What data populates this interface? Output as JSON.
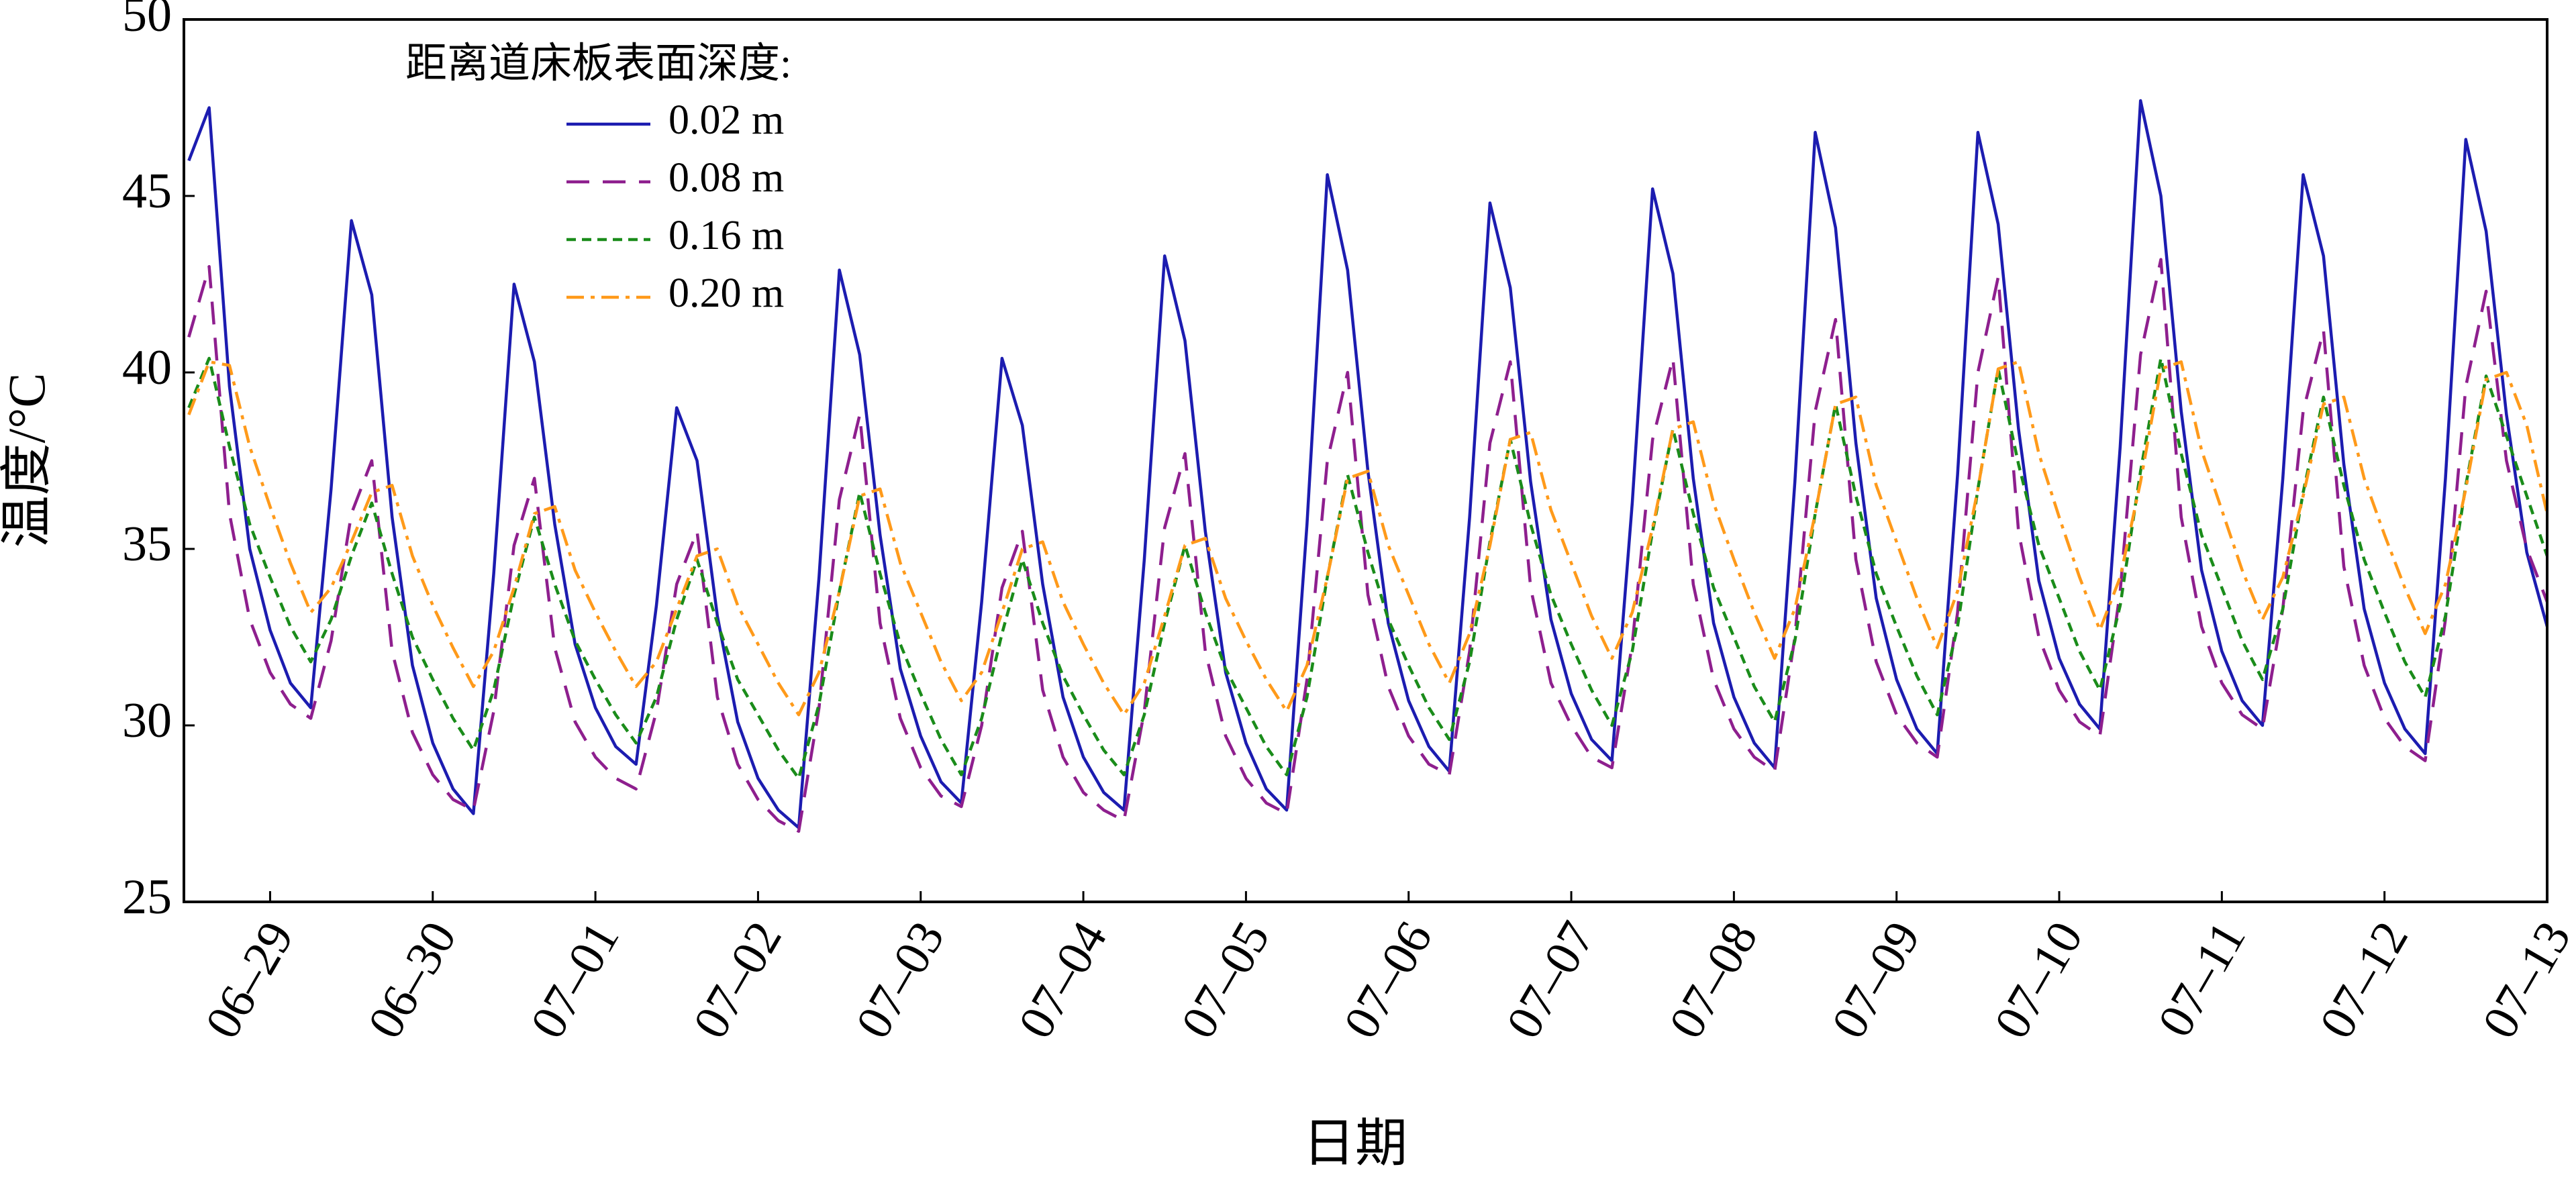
{
  "chart_data": {
    "type": "line",
    "xlabel": "日期",
    "ylabel": "温度/°C",
    "legend_title": "距离道床板表面深度:",
    "legend": "upper left",
    "xlim": [
      -0.53,
      14
    ],
    "ylim": [
      25,
      50
    ],
    "yticks": [
      25,
      30,
      35,
      40,
      45,
      50
    ],
    "xticks": [
      {
        "value": 0,
        "label": "06–29"
      },
      {
        "value": 1,
        "label": "06–30"
      },
      {
        "value": 2,
        "label": "07–01"
      },
      {
        "value": 3,
        "label": "07–02"
      },
      {
        "value": 4,
        "label": "07–03"
      },
      {
        "value": 5,
        "label": "07–04"
      },
      {
        "value": 6,
        "label": "07–05"
      },
      {
        "value": 7,
        "label": "07–06"
      },
      {
        "value": 8,
        "label": "07–07"
      },
      {
        "value": 9,
        "label": "07–08"
      },
      {
        "value": 10,
        "label": "07–09"
      },
      {
        "value": 11,
        "label": "07–10"
      },
      {
        "value": 12,
        "label": "07–11"
      },
      {
        "value": 13,
        "label": "07–12"
      },
      {
        "value": 14,
        "label": "07–13"
      }
    ],
    "x": [
      -0.5,
      -0.375,
      -0.25,
      -0.125,
      0,
      0.125,
      0.25,
      0.375,
      0.5,
      0.625,
      0.75,
      0.875,
      1,
      1.125,
      1.25,
      1.375,
      1.5,
      1.625,
      1.75,
      1.875,
      2,
      2.125,
      2.25,
      2.375,
      2.5,
      2.625,
      2.75,
      2.875,
      3,
      3.125,
      3.25,
      3.375,
      3.5,
      3.625,
      3.75,
      3.875,
      4,
      4.125,
      4.25,
      4.375,
      4.5,
      4.625,
      4.75,
      4.875,
      5,
      5.125,
      5.25,
      5.375,
      5.5,
      5.625,
      5.75,
      5.875,
      6,
      6.125,
      6.25,
      6.375,
      6.5,
      6.625,
      6.75,
      6.875,
      7,
      7.125,
      7.25,
      7.375,
      7.5,
      7.625,
      7.75,
      7.875,
      8,
      8.125,
      8.25,
      8.375,
      8.5,
      8.625,
      8.75,
      8.875,
      9,
      9.125,
      9.25,
      9.375,
      9.5,
      9.625,
      9.75,
      9.875,
      10,
      10.125,
      10.25,
      10.375,
      10.5,
      10.625,
      10.75,
      10.875,
      11,
      11.125,
      11.25,
      11.375,
      11.5,
      11.625,
      11.75,
      11.875,
      12,
      12.125,
      12.25,
      12.375,
      12.5,
      12.625,
      12.75,
      12.875,
      13,
      13.125,
      13.25,
      13.375,
      13.5,
      13.625,
      13.75,
      13.875,
      14
    ],
    "series": [
      {
        "name": "0.02 m",
        "color": "#1c1cb0",
        "linestyle": "solid",
        "values": [
          46.0,
          47.5,
          39.6,
          35.0,
          32.7,
          31.2,
          30.5,
          36.7,
          44.3,
          42.2,
          35.9,
          31.7,
          29.5,
          28.2,
          27.5,
          34.3,
          42.5,
          40.3,
          35.7,
          32.3,
          30.5,
          29.4,
          28.9,
          33.4,
          39.0,
          37.5,
          33.1,
          30.1,
          28.5,
          27.6,
          27.1,
          34.2,
          42.9,
          40.5,
          35.4,
          31.6,
          29.7,
          28.4,
          27.8,
          33.5,
          40.4,
          38.5,
          34.0,
          30.8,
          29.1,
          28.1,
          27.6,
          34.7,
          43.3,
          40.9,
          35.5,
          31.5,
          29.5,
          28.2,
          27.6,
          35.7,
          45.6,
          42.9,
          37.2,
          32.9,
          30.7,
          29.4,
          28.7,
          35.9,
          44.8,
          42.4,
          36.9,
          33.0,
          30.9,
          29.6,
          29.0,
          36.3,
          45.2,
          42.8,
          37.0,
          32.9,
          30.8,
          29.5,
          28.8,
          36.9,
          46.8,
          44.1,
          38.0,
          33.6,
          31.3,
          29.9,
          29.2,
          37.1,
          46.8,
          44.2,
          38.4,
          34.1,
          31.9,
          30.6,
          29.9,
          37.9,
          47.7,
          45.0,
          38.9,
          34.4,
          32.1,
          30.7,
          30.0,
          37.0,
          45.6,
          43.3,
          37.4,
          33.3,
          31.2,
          29.9,
          29.2,
          37.0,
          46.6,
          44.0,
          38.8,
          34.9,
          32.8
        ]
      },
      {
        "name": "0.08 m",
        "color": "#8e1f8e",
        "linestyle": "dashed",
        "values": [
          41.0,
          43.0,
          36.0,
          33.0,
          31.5,
          30.6,
          30.2,
          32.4,
          36.0,
          37.5,
          32.1,
          29.8,
          28.6,
          27.9,
          27.6,
          30.4,
          35.1,
          37.0,
          32.2,
          30.1,
          29.1,
          28.5,
          28.2,
          30.4,
          34.0,
          35.5,
          30.8,
          28.9,
          27.9,
          27.3,
          27.0,
          30.5,
          36.4,
          38.8,
          32.9,
          30.2,
          28.8,
          28.0,
          27.7,
          30.0,
          33.9,
          35.5,
          31.0,
          29.1,
          28.1,
          27.6,
          27.3,
          30.4,
          35.6,
          37.7,
          32.1,
          29.7,
          28.5,
          27.8,
          27.5,
          31.3,
          37.5,
          40.0,
          33.7,
          31.1,
          29.7,
          28.9,
          28.6,
          32.1,
          38.0,
          40.3,
          33.9,
          31.2,
          30.0,
          29.1,
          28.8,
          32.3,
          38.1,
          40.4,
          34.0,
          31.3,
          29.9,
          29.1,
          28.7,
          32.5,
          38.9,
          41.5,
          34.7,
          31.8,
          30.3,
          29.5,
          29.1,
          33.2,
          40.0,
          42.7,
          35.5,
          32.5,
          31.0,
          30.1,
          29.7,
          33.8,
          40.5,
          43.2,
          35.9,
          32.8,
          31.2,
          30.3,
          29.9,
          33.3,
          38.9,
          41.2,
          34.5,
          31.7,
          30.2,
          29.4,
          29.0,
          33.0,
          39.6,
          42.3,
          37.5,
          35.0,
          33.5
        ]
      },
      {
        "name": "0.16 m",
        "color": "#1a8c1a",
        "linestyle": "dotted",
        "values": [
          39.0,
          40.4,
          37.9,
          35.7,
          34.2,
          32.8,
          31.8,
          33.0,
          34.8,
          36.3,
          34.3,
          32.5,
          31.3,
          30.2,
          29.3,
          31.0,
          33.7,
          35.9,
          34.0,
          32.4,
          31.3,
          30.3,
          29.5,
          30.8,
          33.0,
          34.7,
          32.9,
          31.3,
          30.3,
          29.3,
          28.5,
          30.6,
          33.8,
          36.6,
          34.3,
          32.3,
          30.9,
          29.6,
          28.6,
          30.2,
          32.6,
          34.7,
          32.9,
          31.4,
          30.3,
          29.3,
          28.6,
          30.3,
          32.9,
          35.1,
          33.2,
          31.6,
          30.5,
          29.4,
          28.6,
          30.8,
          34.2,
          37.1,
          34.9,
          33.0,
          31.7,
          30.5,
          29.6,
          31.8,
          35.2,
          38.1,
          35.7,
          33.7,
          32.3,
          31.0,
          30.0,
          32.1,
          35.5,
          38.4,
          36.0,
          33.9,
          32.5,
          31.1,
          30.1,
          32.4,
          36.0,
          39.1,
          36.5,
          34.3,
          32.8,
          31.4,
          30.3,
          32.8,
          36.7,
          40.1,
          37.4,
          35.1,
          33.6,
          32.1,
          31.0,
          33.4,
          37.2,
          40.4,
          37.7,
          35.4,
          33.9,
          32.4,
          31.3,
          33.3,
          36.6,
          39.3,
          36.8,
          34.7,
          33.2,
          31.8,
          30.8,
          33.1,
          36.8,
          39.9,
          38.2,
          36.5,
          34.8
        ]
      },
      {
        "name": "0.20 m",
        "color": "#ff9a1a",
        "linestyle": "dashdot",
        "values": [
          38.8,
          40.3,
          40.2,
          37.9,
          36.2,
          34.6,
          33.2,
          33.9,
          35.2,
          36.6,
          36.8,
          34.8,
          33.4,
          32.2,
          31.1,
          32.1,
          33.9,
          36.0,
          36.2,
          34.4,
          33.2,
          32.1,
          31.1,
          31.8,
          33.3,
          34.8,
          35.0,
          33.4,
          32.3,
          31.2,
          30.3,
          31.5,
          33.8,
          36.5,
          36.7,
          34.6,
          33.2,
          31.8,
          30.7,
          31.5,
          33.2,
          35.0,
          35.2,
          33.5,
          32.3,
          31.2,
          30.3,
          31.2,
          33.1,
          35.1,
          35.3,
          33.6,
          32.4,
          31.3,
          30.4,
          31.7,
          34.2,
          37.0,
          37.2,
          35.1,
          33.7,
          32.3,
          31.2,
          32.6,
          35.1,
          38.1,
          38.3,
          36.1,
          34.6,
          33.1,
          31.9,
          33.2,
          35.6,
          38.4,
          38.6,
          36.3,
          34.7,
          33.2,
          31.9,
          33.3,
          36.0,
          39.1,
          39.3,
          36.8,
          35.2,
          33.6,
          32.2,
          33.8,
          36.7,
          40.1,
          40.3,
          37.7,
          35.9,
          34.2,
          32.7,
          34.2,
          36.9,
          40.1,
          40.3,
          37.8,
          36.1,
          34.4,
          33.0,
          34.2,
          36.5,
          39.1,
          39.3,
          37.0,
          35.4,
          33.9,
          32.6,
          34.0,
          36.7,
          39.8,
          40.0,
          38.5,
          36.0
        ]
      }
    ]
  }
}
